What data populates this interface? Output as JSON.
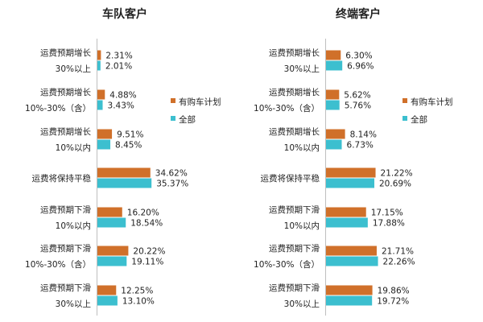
{
  "colors": {
    "purchase": "#d0702a",
    "all": "#3cbfcf"
  },
  "chart_data": [
    {
      "type": "bar",
      "title": "车队客户",
      "categories": [
        [
          "运费预期增长",
          "30%以上"
        ],
        [
          "运费预期增长",
          "10%-30%（含）"
        ],
        [
          "运费预期增长",
          "10%以内"
        ],
        [
          "运费将保持平稳"
        ],
        [
          "运费预期下滑",
          "10%以内"
        ],
        [
          "运费预期下滑",
          "10%-30%（含）"
        ],
        [
          "运费预期下滑",
          "30%以上"
        ]
      ],
      "series": [
        {
          "name": "有购车计划",
          "values": [
            2.31,
            4.88,
            9.51,
            34.62,
            16.2,
            20.22,
            12.25
          ]
        },
        {
          "name": "全部",
          "values": [
            2.01,
            3.43,
            8.45,
            35.37,
            18.54,
            19.11,
            13.1
          ]
        }
      ],
      "value_suffix": "%",
      "legend": "right"
    },
    {
      "type": "bar",
      "title": "终端客户",
      "categories": [
        [
          "运费预期增长",
          "30%以上"
        ],
        [
          "运费预期增长",
          "10%-30%（含）"
        ],
        [
          "运费预期增长",
          "10%以内"
        ],
        [
          "运费将保持平稳"
        ],
        [
          "运费预期下滑",
          "10%以内"
        ],
        [
          "运费预期下滑",
          "10%-30%（含）"
        ],
        [
          "运费预期下滑",
          "30%以上"
        ]
      ],
      "series": [
        {
          "name": "有购车计划",
          "values": [
            6.3,
            5.62,
            8.14,
            21.22,
            17.15,
            21.71,
            19.86
          ]
        },
        {
          "name": "全部",
          "values": [
            6.96,
            5.76,
            6.73,
            20.69,
            17.88,
            22.26,
            19.72
          ]
        }
      ],
      "value_suffix": "%",
      "legend": "right"
    }
  ]
}
